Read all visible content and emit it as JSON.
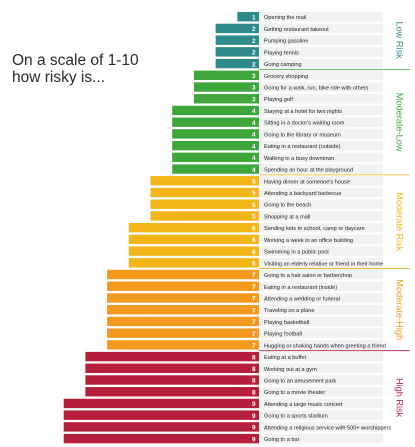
{
  "heading": {
    "line1": "On a scale of 1-10",
    "line2": "how risky is..."
  },
  "colors": {
    "low": "#2f8a8c",
    "moderate_low": "#3fa63c",
    "moderate": "#f2b619",
    "moderate_high": "#f39a1e",
    "high": "#b51f3b",
    "row_bg": "#f1f2f2",
    "row_line": "#ffffff"
  },
  "chart_data": {
    "type": "bar",
    "orientation": "horizontal",
    "xlim": [
      0,
      10
    ],
    "categories": [
      "Opening the mail",
      "Getting restaurant takeout",
      "Pumping gasoline",
      "Playing tennis",
      "Going camping",
      "Grocery shopping",
      "Going for a walk, run, bike ride with others",
      "Playing golf",
      "Staying at a hotel for two nights",
      "Sitting in a doctor's waiting room",
      "Going to the library or museum",
      "Eating in a restaurant (outside)",
      "Walking in a busy downtown",
      "Spending an hour at the playground",
      "Having dinner at someone's house",
      "Attending a backyard barbecue",
      "Going to the beach",
      "Shopping at a mall",
      "Sending kids to school, camp or daycare",
      "Working a week in an office building",
      "Swimming in a public pool",
      "Visiting an elderly relative or friend in their home",
      "Going to a hair salon or barbershop",
      "Eating in a restaurant (inside)",
      "Attending a wedding or funeral",
      "Traveling on a plane",
      "Playing basketball",
      "Playing football",
      "Hugging or shaking hands when greeting a friend",
      "Eating at a buffet",
      "Working out at a gym",
      "Going to an amusement park",
      "Going to a movie theater",
      "Attending a large music concert",
      "Going to a sports stadium",
      "Attending a religious service with 500+ worshippers",
      "Going to a bar"
    ],
    "values": [
      1,
      2,
      2,
      2,
      2,
      3,
      3,
      3,
      4,
      4,
      4,
      4,
      4,
      4,
      5,
      5,
      5,
      5,
      6,
      6,
      6,
      6,
      7,
      7,
      7,
      7,
      7,
      7,
      7,
      8,
      8,
      8,
      8,
      9,
      9,
      9,
      9
    ],
    "groups": [
      {
        "label": "Low Risk",
        "start": 0,
        "end": 4,
        "color_key": "low"
      },
      {
        "label": "Moderate-Low",
        "start": 5,
        "end": 13,
        "color_key": "moderate_low"
      },
      {
        "label": "Moderate Risk",
        "start": 14,
        "end": 21,
        "color_key": "moderate"
      },
      {
        "label": "Moderate-High",
        "start": 22,
        "end": 28,
        "color_key": "moderate_high"
      },
      {
        "label": "High Risk",
        "start": 29,
        "end": 36,
        "color_key": "high"
      }
    ]
  }
}
